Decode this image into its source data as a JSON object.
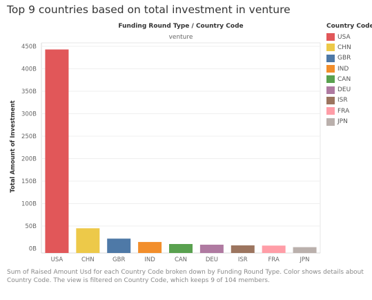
{
  "title": "Top 9 countries based on total investment in venture",
  "chart_data": {
    "type": "bar",
    "header": "Funding Round Type  /  Country Code",
    "pane_label": "venture",
    "ylabel": "Total Amount of Investment",
    "ylim": [
      0,
      470
    ],
    "yticks": [
      0,
      50,
      100,
      150,
      200,
      250,
      300,
      350,
      400,
      450
    ],
    "ytick_labels": [
      "0B",
      "50B",
      "100B",
      "150B",
      "200B",
      "250B",
      "300B",
      "350B",
      "400B",
      "450B"
    ],
    "categories": [
      "USA",
      "CHN",
      "GBR",
      "IND",
      "CAN",
      "DEU",
      "ISR",
      "FRA",
      "JPN"
    ],
    "values": [
      443,
      45,
      22,
      14.5,
      10,
      8.5,
      7,
      6.5,
      3
    ],
    "colors": [
      "#e15759",
      "#edc949",
      "#4e79a7",
      "#f28e2b",
      "#59a14f",
      "#af7aa1",
      "#9c755f",
      "#ff9da7",
      "#bab0ac"
    ],
    "grid": true,
    "legend_title": "Country Code",
    "legend_placement": "right"
  },
  "caption": "Sum of Raised Amount Usd for each Country Code broken down by Funding Round Type.  Color shows details about Country Code. The view is filtered on Country Code, which keeps 9 of 104 members."
}
